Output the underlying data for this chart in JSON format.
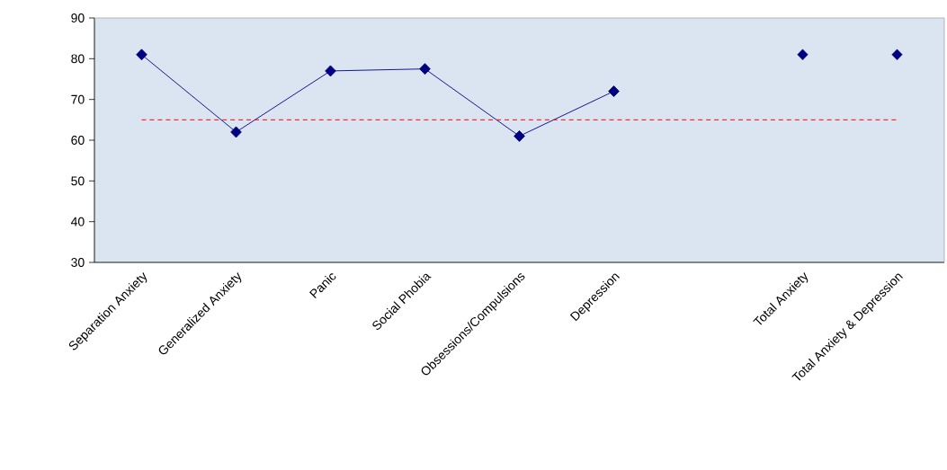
{
  "chart_data": {
    "type": "line",
    "categories": [
      "Separation Anxiety",
      "Generalized Anxiety",
      "Panic",
      "Social Phobia",
      "Obsessions/Compulsions",
      "Depression",
      null,
      "Total Anxiety",
      "Total Anxiety & Depression"
    ],
    "series": [
      {
        "color": "#000080",
        "values": [
          81,
          62,
          77,
          77.5,
          61,
          72,
          null,
          null,
          null
        ]
      },
      {
        "type": "scatter",
        "color": "#000080",
        "values": [
          null,
          null,
          null,
          null,
          null,
          null,
          null,
          81,
          81
        ]
      }
    ],
    "ylim": [
      30,
      90
    ],
    "yticks": [
      30,
      40,
      50,
      60,
      70,
      80,
      90
    ],
    "grid": false,
    "marker": "diamond",
    "line_style": "solid",
    "ref_lines": [
      {
        "axis": "y",
        "value": 65,
        "color": "#ff0000",
        "line_style": "dashed"
      }
    ]
  }
}
